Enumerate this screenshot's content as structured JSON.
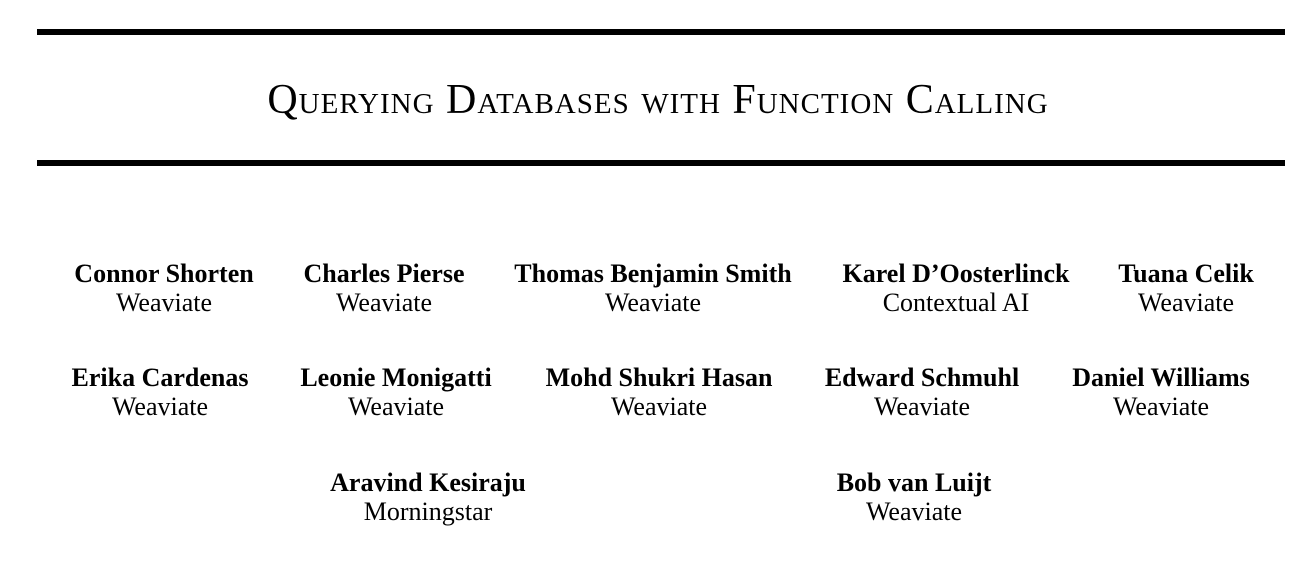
{
  "title": "Querying Databases with Function Calling",
  "authors": [
    {
      "name": "Connor Shorten",
      "affiliation": "Weaviate"
    },
    {
      "name": "Charles Pierse",
      "affiliation": "Weaviate"
    },
    {
      "name": "Thomas Benjamin Smith",
      "affiliation": "Weaviate"
    },
    {
      "name": "Karel D’Oosterlinck",
      "affiliation": "Contextual AI"
    },
    {
      "name": "Tuana Celik",
      "affiliation": "Weaviate"
    },
    {
      "name": "Erika Cardenas",
      "affiliation": "Weaviate"
    },
    {
      "name": "Leonie Monigatti",
      "affiliation": "Weaviate"
    },
    {
      "name": "Mohd Shukri Hasan",
      "affiliation": "Weaviate"
    },
    {
      "name": "Edward Schmuhl",
      "affiliation": "Weaviate"
    },
    {
      "name": "Daniel Williams",
      "affiliation": "Weaviate"
    },
    {
      "name": "Aravind Kesiraju",
      "affiliation": "Morningstar"
    },
    {
      "name": "Bob van Luijt",
      "affiliation": "Weaviate"
    }
  ]
}
